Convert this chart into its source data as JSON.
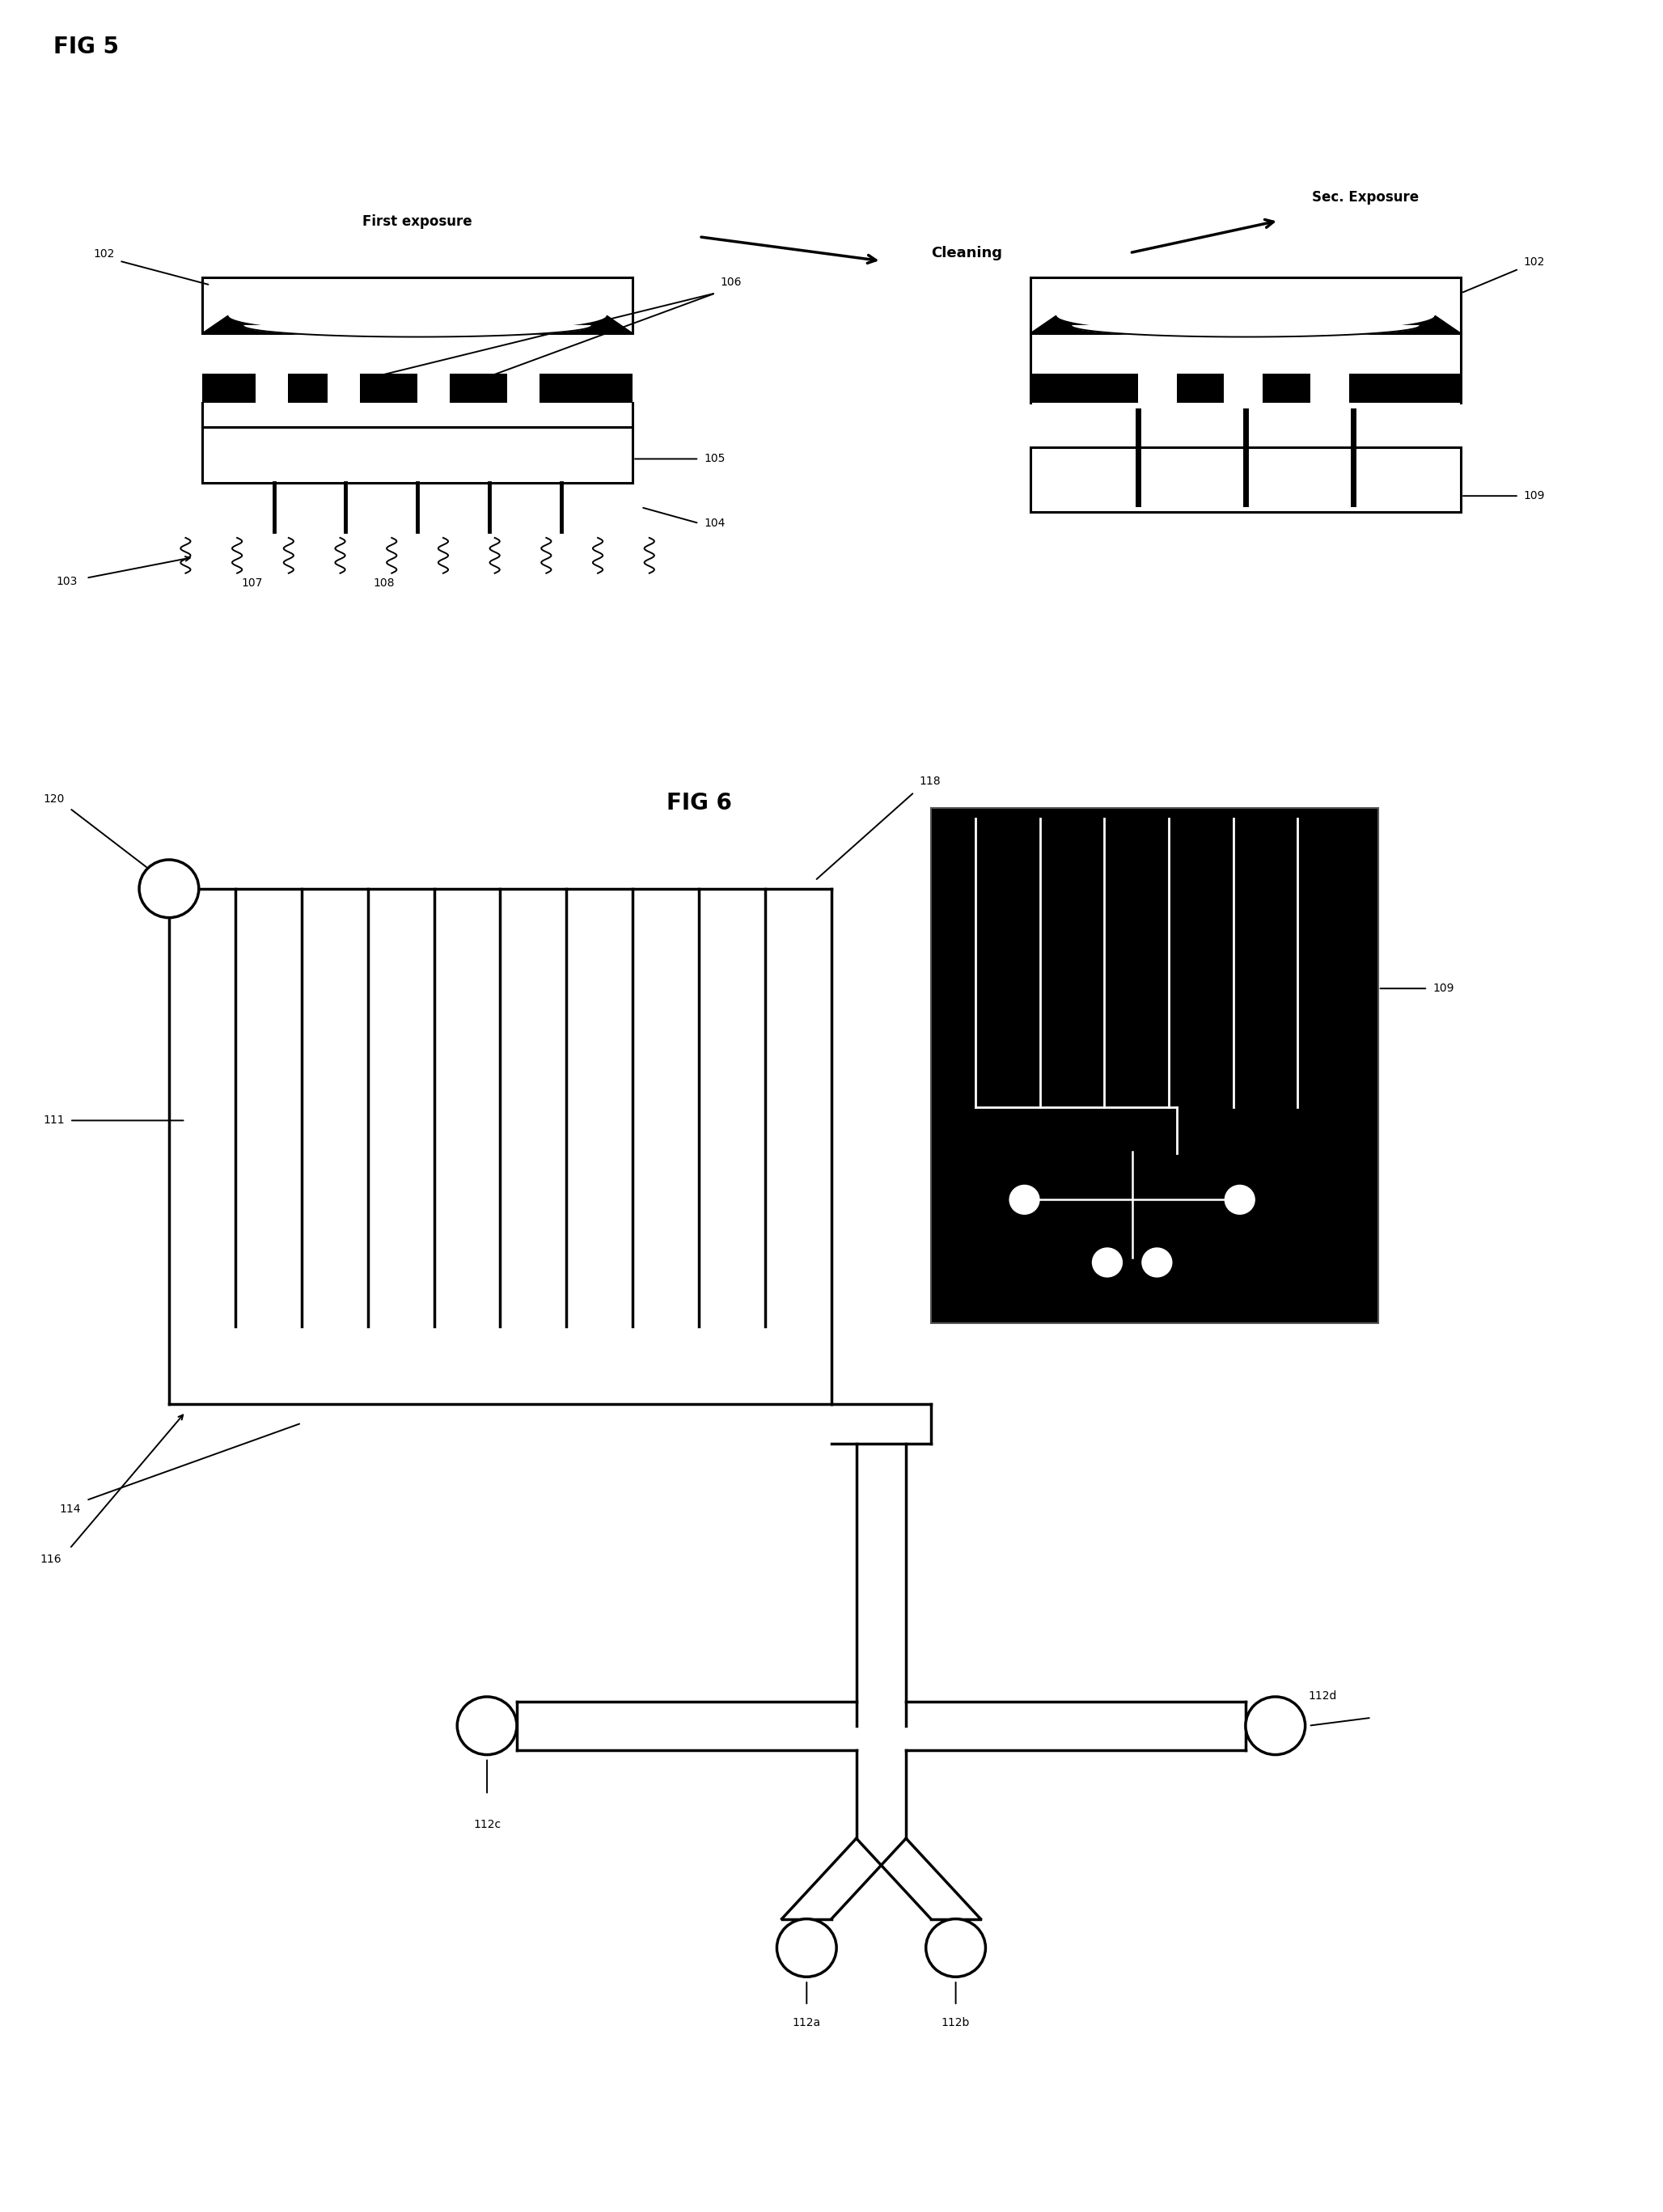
{
  "fig_width": 20.56,
  "fig_height": 27.35,
  "bg_color": "#ffffff",
  "fig5_title": "FIG 5",
  "fig6_title": "FIG 6",
  "labels": {
    "first_exposure": "First exposure",
    "cleaning": "Cleaning",
    "sec_exposure": "Sec. Exposure",
    "r102_1": "102",
    "r102_2": "102",
    "r103": "103",
    "r104": "104",
    "r105": "105",
    "r106": "106",
    "r107": "107",
    "r108": "108",
    "r109_1": "109",
    "r109_2": "109",
    "r111": "111",
    "r112a": "112a",
    "r112b": "112b",
    "r112c": "112c",
    "r112d": "112d",
    "r114": "114",
    "r116": "116",
    "r118": "118",
    "r120": "120"
  }
}
